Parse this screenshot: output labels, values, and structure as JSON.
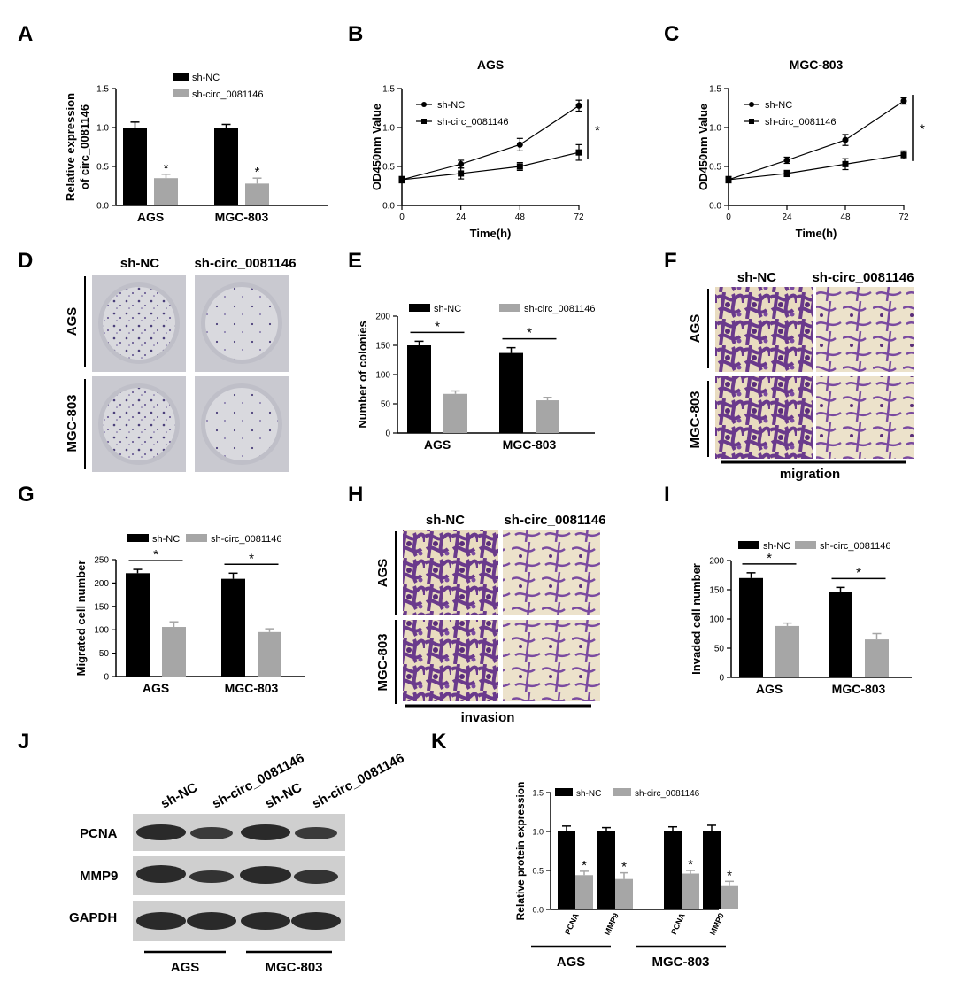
{
  "panel_labels": [
    "A",
    "B",
    "C",
    "D",
    "E",
    "F",
    "G",
    "H",
    "I",
    "J",
    "K"
  ],
  "colors": {
    "black_bar": "#000000",
    "gray_bar": "#a6a6a6",
    "purple_stain": "#6a3a8c",
    "cream": "#e9dcc0",
    "blot_band": "#2a2a2a",
    "blot_bg": "#cfcfcf",
    "dish": "#d9d9de"
  },
  "panel_D": {
    "col_labels": [
      "sh-NC",
      "sh-circ_0081146"
    ],
    "row_labels": [
      "AGS",
      "MGC-803"
    ]
  },
  "panel_F": {
    "col_labels": [
      "sh-NC",
      "sh-circ_0081146"
    ],
    "row_labels": [
      "AGS",
      "MGC-803"
    ],
    "footer": "migration"
  },
  "panel_H": {
    "col_labels": [
      "sh-NC",
      "sh-circ_0081146"
    ],
    "row_labels": [
      "AGS",
      "MGC-803"
    ],
    "footer": "invasion"
  },
  "panel_J": {
    "lane_labels": [
      "sh-NC",
      "sh-circ_0081146",
      "sh-NC",
      "sh-circ_0081146"
    ],
    "row_labels": [
      "PCNA",
      "MMP9",
      "GAPDH"
    ],
    "group_labels": [
      "AGS",
      "MGC-803"
    ]
  },
  "chart_data": [
    {
      "panel": "A",
      "type": "bar",
      "categories": [
        "AGS",
        "MGC-803"
      ],
      "series": [
        {
          "name": "sh-NC",
          "values": [
            1.0,
            1.0
          ],
          "errors": [
            0.07,
            0.04
          ]
        },
        {
          "name": "sh-circ_0081146",
          "values": [
            0.35,
            0.28
          ],
          "errors": [
            0.05,
            0.07
          ]
        }
      ],
      "ylabel": "Relative expression\nof circ_0081146",
      "ylim": [
        0,
        1.5
      ],
      "yticks": [
        "0.0",
        "0.5",
        "1.0",
        "1.5"
      ],
      "significance": [
        "*",
        "*"
      ],
      "legend": "top-right"
    },
    {
      "panel": "B",
      "type": "line",
      "title": "AGS",
      "x": [
        0,
        24,
        48,
        72
      ],
      "series": [
        {
          "name": "sh-NC",
          "values": [
            0.33,
            0.53,
            0.78,
            1.28
          ],
          "errors": [
            0.04,
            0.05,
            0.08,
            0.07
          ]
        },
        {
          "name": "sh-circ_0081146",
          "values": [
            0.33,
            0.41,
            0.5,
            0.68
          ],
          "errors": [
            0.04,
            0.07,
            0.05,
            0.1
          ]
        }
      ],
      "xlabel": "Time(h)",
      "ylabel": "OD450nm Value",
      "ylim": [
        0,
        1.5
      ],
      "xticks": [
        "0",
        "24",
        "48",
        "72"
      ],
      "yticks": [
        "0.0",
        "0.5",
        "1.0",
        "1.5"
      ],
      "significance": "*",
      "legend": "top-left"
    },
    {
      "panel": "C",
      "type": "line",
      "title": "MGC-803",
      "x": [
        0,
        24,
        48,
        72
      ],
      "series": [
        {
          "name": "sh-NC",
          "values": [
            0.33,
            0.58,
            0.84,
            1.34
          ],
          "errors": [
            0.04,
            0.04,
            0.07,
            0.04
          ]
        },
        {
          "name": "sh-circ_0081146",
          "values": [
            0.33,
            0.41,
            0.53,
            0.65
          ],
          "errors": [
            0.04,
            0.04,
            0.07,
            0.05
          ]
        }
      ],
      "xlabel": "Time(h)",
      "ylabel": "OD450nm Value",
      "ylim": [
        0,
        1.5
      ],
      "xticks": [
        "0",
        "24",
        "48",
        "72"
      ],
      "yticks": [
        "0.0",
        "0.5",
        "1.0",
        "1.5"
      ],
      "significance": "*",
      "legend": "top-left"
    },
    {
      "panel": "E",
      "type": "bar",
      "categories": [
        "AGS",
        "MGC-803"
      ],
      "series": [
        {
          "name": "sh-NC",
          "values": [
            150,
            137
          ],
          "errors": [
            7,
            9
          ]
        },
        {
          "name": "sh-circ_0081146",
          "values": [
            67,
            56
          ],
          "errors": [
            5,
            5
          ]
        }
      ],
      "ylabel": "Number of colonies",
      "ylim": [
        0,
        200
      ],
      "yticks": [
        "0",
        "50",
        "100",
        "150",
        "200"
      ],
      "significance": [
        "*",
        "*"
      ],
      "legend": "top"
    },
    {
      "panel": "G",
      "type": "bar",
      "categories": [
        "AGS",
        "MGC-803"
      ],
      "series": [
        {
          "name": "sh-NC",
          "values": [
            221,
            209
          ],
          "errors": [
            8,
            12
          ]
        },
        {
          "name": "sh-circ_0081146",
          "values": [
            106,
            95
          ],
          "errors": [
            11,
            7
          ]
        }
      ],
      "ylabel": "Migrated cell number",
      "ylim": [
        0,
        250
      ],
      "yticks": [
        "0",
        "50",
        "100",
        "150",
        "200",
        "250"
      ],
      "significance": [
        "*",
        "*"
      ],
      "legend": "top"
    },
    {
      "panel": "I",
      "type": "bar",
      "categories": [
        "AGS",
        "MGC-803"
      ],
      "series": [
        {
          "name": "sh-NC",
          "values": [
            170,
            146
          ],
          "errors": [
            9,
            8
          ]
        },
        {
          "name": "sh-circ_0081146",
          "values": [
            88,
            65
          ],
          "errors": [
            5,
            10
          ]
        }
      ],
      "ylabel": "Invaded cell number",
      "ylim": [
        0,
        200
      ],
      "yticks": [
        "0",
        "50",
        "100",
        "150",
        "200"
      ],
      "significance": [
        "*",
        "*"
      ],
      "legend": "top"
    },
    {
      "panel": "K",
      "type": "bar",
      "groups": [
        "AGS",
        "MGC-803"
      ],
      "categories": [
        "PCNA",
        "MMP9",
        "PCNA",
        "MMP9"
      ],
      "series": [
        {
          "name": "sh-NC",
          "values": [
            1.0,
            1.0,
            1.0,
            1.0
          ],
          "errors": [
            0.07,
            0.05,
            0.06,
            0.08
          ]
        },
        {
          "name": "sh-circ_0081146",
          "values": [
            0.44,
            0.39,
            0.46,
            0.31
          ],
          "errors": [
            0.05,
            0.08,
            0.04,
            0.05
          ]
        }
      ],
      "ylabel": "Relative protein expression",
      "ylim": [
        0,
        1.5
      ],
      "yticks": [
        "0.0",
        "0.5",
        "1.0",
        "1.5"
      ],
      "significance": [
        "*",
        "*",
        "*",
        "*"
      ],
      "legend": "top"
    }
  ]
}
